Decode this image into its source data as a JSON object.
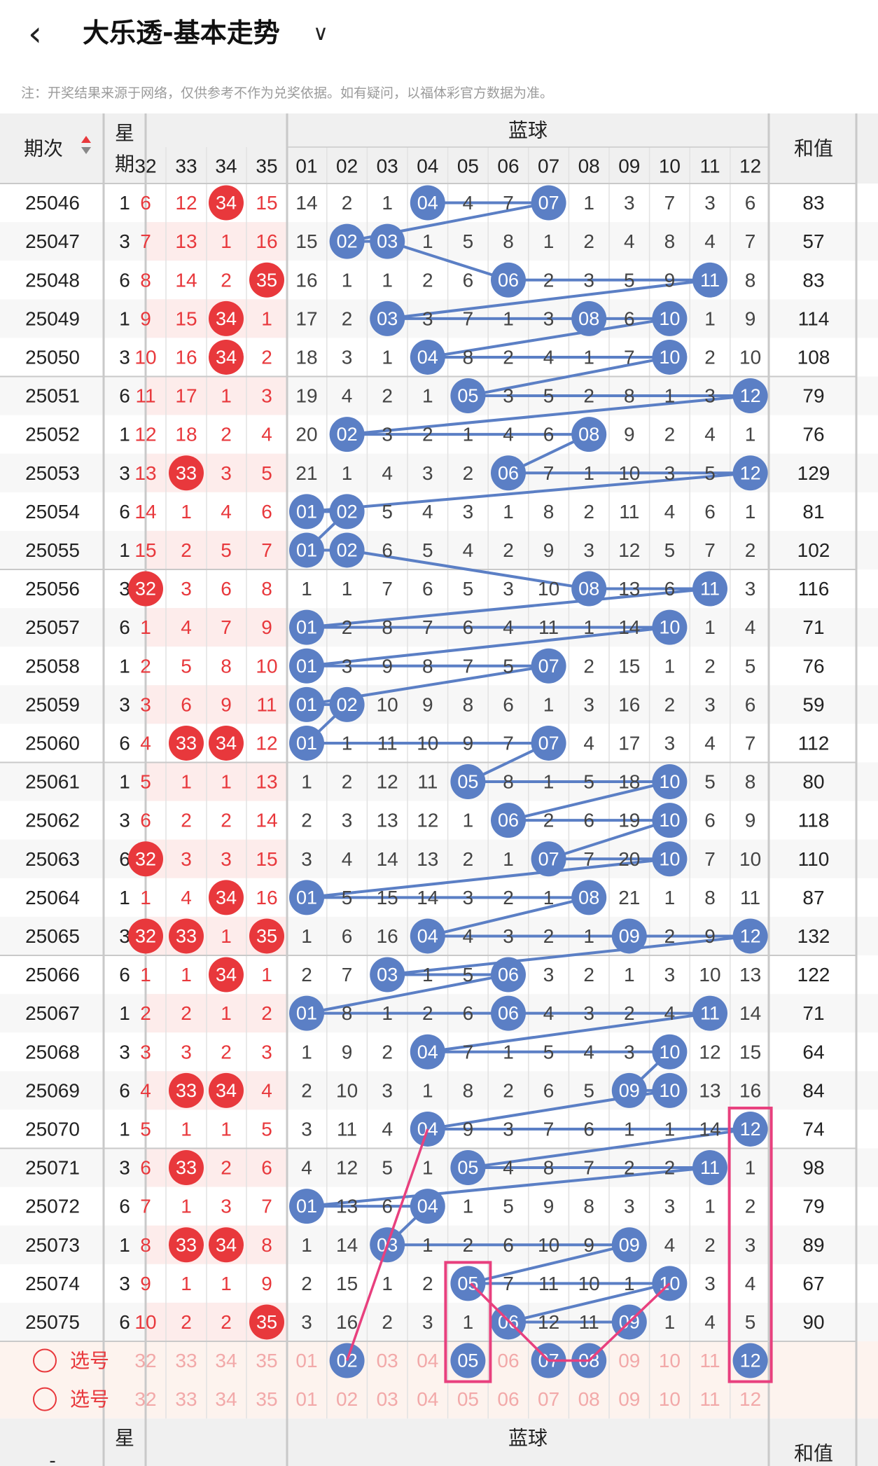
{
  "header": {
    "title": "大乐透-基本走势",
    "back_icon": "chevron-left-icon",
    "dropdown_icon": "chevron-down-icon"
  },
  "note": "注：开奖结果来源于网络，仅供参考不作为兑奖依据。如有疑问，以福体彩官方数据为准。",
  "table": {
    "col_period": "期次",
    "sort_icon": "sort-arrows-icon",
    "col_weekday": "星期",
    "blue_section": "蓝球",
    "col_sum": "和值",
    "red_headers": [
      "32",
      "33",
      "34",
      "35"
    ],
    "blue_headers": [
      "01",
      "02",
      "03",
      "04",
      "05",
      "06",
      "07",
      "08",
      "09",
      "10",
      "11",
      "12"
    ]
  },
  "rows": [
    {
      "period": "25046",
      "week": "1",
      "red": [
        "6",
        "12",
        "34",
        "15"
      ],
      "red_hit": [
        false,
        false,
        true,
        false
      ],
      "blue": [
        "14",
        "2",
        "1",
        "04",
        "4",
        "7",
        "07",
        "1",
        "3",
        "7",
        "3",
        "6"
      ],
      "sum": "83"
    },
    {
      "period": "25047",
      "week": "3",
      "red": [
        "7",
        "13",
        "1",
        "16"
      ],
      "red_hit": [
        false,
        false,
        false,
        false
      ],
      "blue": [
        "15",
        "02",
        "03",
        "1",
        "5",
        "8",
        "1",
        "2",
        "4",
        "8",
        "4",
        "7"
      ],
      "sum": "57"
    },
    {
      "period": "25048",
      "week": "6",
      "red": [
        "8",
        "14",
        "2",
        "35"
      ],
      "red_hit": [
        false,
        false,
        false,
        true
      ],
      "blue": [
        "16",
        "1",
        "1",
        "2",
        "6",
        "06",
        "2",
        "3",
        "5",
        "9",
        "11",
        "8"
      ],
      "sum": "83"
    },
    {
      "period": "25049",
      "week": "1",
      "red": [
        "9",
        "15",
        "34",
        "1"
      ],
      "red_hit": [
        false,
        false,
        true,
        false
      ],
      "blue": [
        "17",
        "2",
        "03",
        "3",
        "7",
        "1",
        "3",
        "08",
        "6",
        "10",
        "1",
        "9"
      ],
      "sum": "114"
    },
    {
      "period": "25050",
      "week": "3",
      "red": [
        "10",
        "16",
        "34",
        "2"
      ],
      "red_hit": [
        false,
        false,
        true,
        false
      ],
      "blue": [
        "18",
        "3",
        "1",
        "04",
        "8",
        "2",
        "4",
        "1",
        "7",
        "10",
        "2",
        "10"
      ],
      "sum": "108"
    },
    {
      "period": "25051",
      "week": "6",
      "red": [
        "11",
        "17",
        "1",
        "3"
      ],
      "red_hit": [
        false,
        false,
        false,
        false
      ],
      "blue": [
        "19",
        "4",
        "2",
        "1",
        "05",
        "3",
        "5",
        "2",
        "8",
        "1",
        "3",
        "12"
      ],
      "sum": "79"
    },
    {
      "period": "25052",
      "week": "1",
      "red": [
        "12",
        "18",
        "2",
        "4"
      ],
      "red_hit": [
        false,
        false,
        false,
        false
      ],
      "blue": [
        "20",
        "02",
        "3",
        "2",
        "1",
        "4",
        "6",
        "08",
        "9",
        "2",
        "4",
        "1"
      ],
      "sum": "76"
    },
    {
      "period": "25053",
      "week": "3",
      "red": [
        "13",
        "33",
        "3",
        "5"
      ],
      "red_hit": [
        false,
        true,
        false,
        false
      ],
      "blue": [
        "21",
        "1",
        "4",
        "3",
        "2",
        "06",
        "7",
        "1",
        "10",
        "3",
        "5",
        "12"
      ],
      "sum": "129"
    },
    {
      "period": "25054",
      "week": "6",
      "red": [
        "14",
        "1",
        "4",
        "6"
      ],
      "red_hit": [
        false,
        false,
        false,
        false
      ],
      "blue": [
        "01",
        "02",
        "5",
        "4",
        "3",
        "1",
        "8",
        "2",
        "11",
        "4",
        "6",
        "1"
      ],
      "sum": "81"
    },
    {
      "period": "25055",
      "week": "1",
      "red": [
        "15",
        "2",
        "5",
        "7"
      ],
      "red_hit": [
        false,
        false,
        false,
        false
      ],
      "blue": [
        "01",
        "02",
        "6",
        "5",
        "4",
        "2",
        "9",
        "3",
        "12",
        "5",
        "7",
        "2"
      ],
      "sum": "102"
    },
    {
      "period": "25056",
      "week": "3",
      "red": [
        "32",
        "3",
        "6",
        "8"
      ],
      "red_hit": [
        true,
        false,
        false,
        false
      ],
      "blue": [
        "1",
        "1",
        "7",
        "6",
        "5",
        "3",
        "10",
        "08",
        "13",
        "6",
        "11",
        "3"
      ],
      "sum": "116"
    },
    {
      "period": "25057",
      "week": "6",
      "red": [
        "1",
        "4",
        "7",
        "9"
      ],
      "red_hit": [
        false,
        false,
        false,
        false
      ],
      "blue": [
        "01",
        "2",
        "8",
        "7",
        "6",
        "4",
        "11",
        "1",
        "14",
        "10",
        "1",
        "4"
      ],
      "sum": "71"
    },
    {
      "period": "25058",
      "week": "1",
      "red": [
        "2",
        "5",
        "8",
        "10"
      ],
      "red_hit": [
        false,
        false,
        false,
        false
      ],
      "blue": [
        "01",
        "3",
        "9",
        "8",
        "7",
        "5",
        "07",
        "2",
        "15",
        "1",
        "2",
        "5"
      ],
      "sum": "76"
    },
    {
      "period": "25059",
      "week": "3",
      "red": [
        "3",
        "6",
        "9",
        "11"
      ],
      "red_hit": [
        false,
        false,
        false,
        false
      ],
      "blue": [
        "01",
        "02",
        "10",
        "9",
        "8",
        "6",
        "1",
        "3",
        "16",
        "2",
        "3",
        "6"
      ],
      "sum": "59"
    },
    {
      "period": "25060",
      "week": "6",
      "red": [
        "4",
        "33",
        "34",
        "12"
      ],
      "red_hit": [
        false,
        true,
        true,
        false
      ],
      "blue": [
        "01",
        "1",
        "11",
        "10",
        "9",
        "7",
        "07",
        "4",
        "17",
        "3",
        "4",
        "7"
      ],
      "sum": "112"
    },
    {
      "period": "25061",
      "week": "1",
      "red": [
        "5",
        "1",
        "1",
        "13"
      ],
      "red_hit": [
        false,
        false,
        false,
        false
      ],
      "blue": [
        "1",
        "2",
        "12",
        "11",
        "05",
        "8",
        "1",
        "5",
        "18",
        "10",
        "5",
        "8"
      ],
      "sum": "80"
    },
    {
      "period": "25062",
      "week": "3",
      "red": [
        "6",
        "2",
        "2",
        "14"
      ],
      "red_hit": [
        false,
        false,
        false,
        false
      ],
      "blue": [
        "2",
        "3",
        "13",
        "12",
        "1",
        "06",
        "2",
        "6",
        "19",
        "10",
        "6",
        "9"
      ],
      "sum": "118"
    },
    {
      "period": "25063",
      "week": "6",
      "red": [
        "32",
        "3",
        "3",
        "15"
      ],
      "red_hit": [
        true,
        false,
        false,
        false
      ],
      "blue": [
        "3",
        "4",
        "14",
        "13",
        "2",
        "1",
        "07",
        "7",
        "20",
        "10",
        "7",
        "10"
      ],
      "sum": "110"
    },
    {
      "period": "25064",
      "week": "1",
      "red": [
        "1",
        "4",
        "34",
        "16"
      ],
      "red_hit": [
        false,
        false,
        true,
        false
      ],
      "blue": [
        "01",
        "5",
        "15",
        "14",
        "3",
        "2",
        "1",
        "08",
        "21",
        "1",
        "8",
        "11"
      ],
      "sum": "87"
    },
    {
      "period": "25065",
      "week": "3",
      "red": [
        "32",
        "33",
        "1",
        "35"
      ],
      "red_hit": [
        true,
        true,
        false,
        true
      ],
      "blue": [
        "1",
        "6",
        "16",
        "04",
        "4",
        "3",
        "2",
        "1",
        "09",
        "2",
        "9",
        "12"
      ],
      "sum": "132"
    },
    {
      "period": "25066",
      "week": "6",
      "red": [
        "1",
        "1",
        "34",
        "1"
      ],
      "red_hit": [
        false,
        false,
        true,
        false
      ],
      "blue": [
        "2",
        "7",
        "03",
        "1",
        "5",
        "06",
        "3",
        "2",
        "1",
        "3",
        "10",
        "13"
      ],
      "sum": "122"
    },
    {
      "period": "25067",
      "week": "1",
      "red": [
        "2",
        "2",
        "1",
        "2"
      ],
      "red_hit": [
        false,
        false,
        false,
        false
      ],
      "blue": [
        "01",
        "8",
        "1",
        "2",
        "6",
        "06",
        "4",
        "3",
        "2",
        "4",
        "11",
        "14"
      ],
      "sum": "71"
    },
    {
      "period": "25068",
      "week": "3",
      "red": [
        "3",
        "3",
        "2",
        "3"
      ],
      "red_hit": [
        false,
        false,
        false,
        false
      ],
      "blue": [
        "1",
        "9",
        "2",
        "04",
        "7",
        "1",
        "5",
        "4",
        "3",
        "10",
        "12",
        "15"
      ],
      "sum": "64"
    },
    {
      "period": "25069",
      "week": "6",
      "red": [
        "4",
        "33",
        "34",
        "4"
      ],
      "red_hit": [
        false,
        true,
        true,
        false
      ],
      "blue": [
        "2",
        "10",
        "3",
        "1",
        "8",
        "2",
        "6",
        "5",
        "09",
        "10",
        "13",
        "16"
      ],
      "sum": "84"
    },
    {
      "period": "25070",
      "week": "1",
      "red": [
        "5",
        "1",
        "1",
        "5"
      ],
      "red_hit": [
        false,
        false,
        false,
        false
      ],
      "blue": [
        "3",
        "11",
        "4",
        "04",
        "9",
        "3",
        "7",
        "6",
        "1",
        "1",
        "14",
        "12"
      ],
      "sum": "74"
    },
    {
      "period": "25071",
      "week": "3",
      "red": [
        "6",
        "33",
        "2",
        "6"
      ],
      "red_hit": [
        false,
        true,
        false,
        false
      ],
      "blue": [
        "4",
        "12",
        "5",
        "1",
        "05",
        "4",
        "8",
        "7",
        "2",
        "2",
        "11",
        "1"
      ],
      "sum": "98"
    },
    {
      "period": "25072",
      "week": "6",
      "red": [
        "7",
        "1",
        "3",
        "7"
      ],
      "red_hit": [
        false,
        false,
        false,
        false
      ],
      "blue": [
        "01",
        "13",
        "6",
        "04",
        "1",
        "5",
        "9",
        "8",
        "3",
        "3",
        "1",
        "2"
      ],
      "sum": "79"
    },
    {
      "period": "25073",
      "week": "1",
      "red": [
        "8",
        "33",
        "34",
        "8"
      ],
      "red_hit": [
        false,
        true,
        true,
        false
      ],
      "blue": [
        "1",
        "14",
        "03",
        "1",
        "2",
        "6",
        "10",
        "9",
        "09",
        "4",
        "2",
        "3"
      ],
      "sum": "89"
    },
    {
      "period": "25074",
      "week": "3",
      "red": [
        "9",
        "1",
        "1",
        "9"
      ],
      "red_hit": [
        false,
        false,
        false,
        false
      ],
      "blue": [
        "2",
        "15",
        "1",
        "2",
        "05",
        "7",
        "11",
        "10",
        "1",
        "10",
        "3",
        "4"
      ],
      "sum": "67"
    },
    {
      "period": "25075",
      "week": "6",
      "red": [
        "10",
        "2",
        "2",
        "35"
      ],
      "red_hit": [
        false,
        false,
        false,
        true
      ],
      "blue": [
        "3",
        "16",
        "2",
        "3",
        "1",
        "06",
        "12",
        "11",
        "09",
        "1",
        "4",
        "5"
      ],
      "sum": "90"
    }
  ],
  "pick_rows": [
    {
      "label": "选号",
      "radio_icon": "radio-circle-icon",
      "red": [
        "32",
        "33",
        "34",
        "35"
      ],
      "blue": [
        "01",
        "02",
        "03",
        "04",
        "05",
        "06",
        "07",
        "08",
        "09",
        "10",
        "11",
        "12"
      ],
      "selected_blue": [
        1,
        4,
        6,
        7,
        11
      ]
    },
    {
      "label": "选号",
      "radio_icon": "radio-circle-icon",
      "red": [
        "32",
        "33",
        "34",
        "35"
      ],
      "blue": [
        "01",
        "02",
        "03",
        "04",
        "05",
        "06",
        "07",
        "08",
        "09",
        "10",
        "11",
        "12"
      ],
      "selected_blue": []
    }
  ],
  "footer": {
    "col_period": "-",
    "col_weekday": "星期",
    "blue_section": "蓝球",
    "col_sum": "和值"
  },
  "colors": {
    "red": "#e8383c",
    "blue": "#5b7fc5",
    "pink": "#e8407e",
    "pale_red": "#fdeceb",
    "header_bg": "#f0f0f0",
    "divider": "#c9c9c9"
  }
}
